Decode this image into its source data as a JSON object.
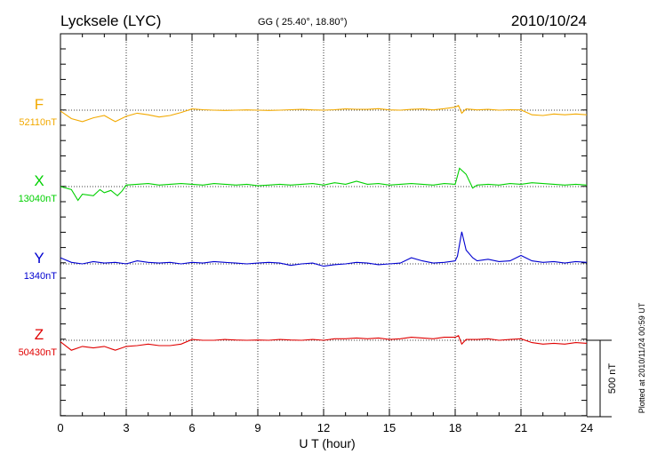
{
  "chart_data": {
    "type": "line",
    "title": "Lycksele (LYC)",
    "subtitle": "GG ( 25.40°,  18.80°)",
    "date": "2010/10/24",
    "xlabel": "U T (hour)",
    "xlim": [
      0,
      24
    ],
    "xticks": [
      "0",
      "3",
      "6",
      "9",
      "12",
      "15",
      "18",
      "21",
      "24"
    ],
    "grid": true,
    "scale_label": "500 nT",
    "plotted_note": "Plotted at 2010/11/24 00:59 UT",
    "series": [
      {
        "name": "F",
        "baseline_label": "52110nT",
        "color": "#f2a900",
        "x": [
          0,
          0.5,
          1,
          1.5,
          2,
          2.5,
          3,
          3.5,
          4,
          4.5,
          5,
          5.5,
          6,
          6.5,
          7,
          7.5,
          8,
          8.5,
          9,
          9.5,
          10,
          10.5,
          11,
          11.5,
          12,
          12.5,
          13,
          13.5,
          14,
          14.5,
          15,
          15.5,
          16,
          16.5,
          17,
          17.5,
          18,
          18.15,
          18.3,
          18.5,
          19,
          19.5,
          20,
          20.5,
          21,
          21.5,
          22,
          22.5,
          23,
          23.5,
          24
        ],
        "values": [
          -5,
          -55,
          -75,
          -50,
          -35,
          -75,
          -40,
          -20,
          -30,
          -45,
          -35,
          -15,
          8,
          3,
          0,
          -2,
          0,
          2,
          0,
          -2,
          0,
          3,
          5,
          2,
          0,
          3,
          8,
          6,
          5,
          10,
          2,
          0,
          5,
          8,
          2,
          10,
          20,
          30,
          -20,
          8,
          2,
          5,
          0,
          3,
          2,
          -30,
          -35,
          -25,
          -30,
          -25,
          -30
        ]
      },
      {
        "name": "X",
        "baseline_label": "13040nT",
        "color": "#00d000",
        "x": [
          0,
          0.5,
          0.8,
          1,
          1.5,
          1.8,
          2,
          2.3,
          2.6,
          2.8,
          3,
          3.5,
          4,
          4.5,
          5,
          5.5,
          6,
          6.5,
          7,
          7.5,
          8,
          8.5,
          9,
          9.5,
          10,
          10.5,
          11,
          11.5,
          12,
          12.5,
          13,
          13.5,
          14,
          14.5,
          15,
          15.5,
          16,
          16.5,
          17,
          17.5,
          18,
          18.2,
          18.5,
          18.8,
          19,
          19.5,
          20,
          20.5,
          21,
          21.5,
          22,
          22.5,
          23,
          23.5,
          24
        ],
        "values": [
          0,
          -20,
          -90,
          -50,
          -60,
          -20,
          -40,
          -25,
          -60,
          -30,
          10,
          15,
          20,
          10,
          15,
          20,
          15,
          10,
          20,
          15,
          10,
          15,
          5,
          10,
          15,
          10,
          15,
          20,
          10,
          25,
          15,
          35,
          15,
          20,
          10,
          15,
          20,
          15,
          10,
          20,
          15,
          120,
          80,
          -10,
          10,
          15,
          10,
          20,
          15,
          25,
          20,
          15,
          10,
          15,
          10
        ]
      },
      {
        "name": "Y",
        "baseline_label": "1340nT",
        "color": "#0000d0",
        "x": [
          0,
          0.5,
          1,
          1.5,
          2,
          2.5,
          3,
          3.5,
          4,
          4.5,
          5,
          5.5,
          6,
          6.5,
          7,
          7.5,
          8,
          8.5,
          9,
          9.5,
          10,
          10.5,
          11,
          11.5,
          12,
          12.5,
          13,
          13.5,
          14,
          14.5,
          15,
          15.5,
          16,
          16.5,
          17,
          17.5,
          18,
          18.1,
          18.3,
          18.5,
          18.8,
          19,
          19.5,
          20,
          20.5,
          21,
          21.5,
          22,
          22.5,
          23,
          23.5,
          24
        ],
        "values": [
          40,
          10,
          0,
          15,
          5,
          10,
          0,
          20,
          10,
          5,
          10,
          0,
          10,
          5,
          15,
          10,
          5,
          0,
          5,
          10,
          5,
          -10,
          0,
          5,
          -15,
          -5,
          0,
          10,
          5,
          -5,
          0,
          5,
          40,
          20,
          5,
          10,
          20,
          50,
          210,
          90,
          40,
          20,
          30,
          15,
          20,
          55,
          20,
          10,
          15,
          5,
          15,
          10
        ]
      },
      {
        "name": "Z",
        "baseline_label": "50430nT",
        "color": "#e00000",
        "x": [
          0,
          0.5,
          1,
          1.5,
          2,
          2.5,
          3,
          3.5,
          4,
          4.5,
          5,
          5.5,
          6,
          6.5,
          7,
          7.5,
          8,
          8.5,
          9,
          9.5,
          10,
          10.5,
          11,
          11.5,
          12,
          12.5,
          13,
          13.5,
          14,
          14.5,
          15,
          15.5,
          16,
          16.5,
          17,
          17.5,
          18,
          18.15,
          18.3,
          18.5,
          19,
          19.5,
          20,
          20.5,
          21,
          21.5,
          22,
          22.5,
          23,
          23.5,
          24
        ],
        "values": [
          -10,
          -65,
          -40,
          -50,
          -40,
          -65,
          -40,
          -35,
          -25,
          -35,
          -35,
          -25,
          5,
          0,
          0,
          5,
          2,
          0,
          2,
          0,
          5,
          2,
          0,
          5,
          0,
          10,
          10,
          15,
          10,
          15,
          5,
          10,
          20,
          15,
          10,
          20,
          20,
          30,
          -25,
          5,
          5,
          10,
          0,
          5,
          10,
          -15,
          -25,
          -20,
          -25,
          -15,
          -20
        ]
      }
    ]
  }
}
